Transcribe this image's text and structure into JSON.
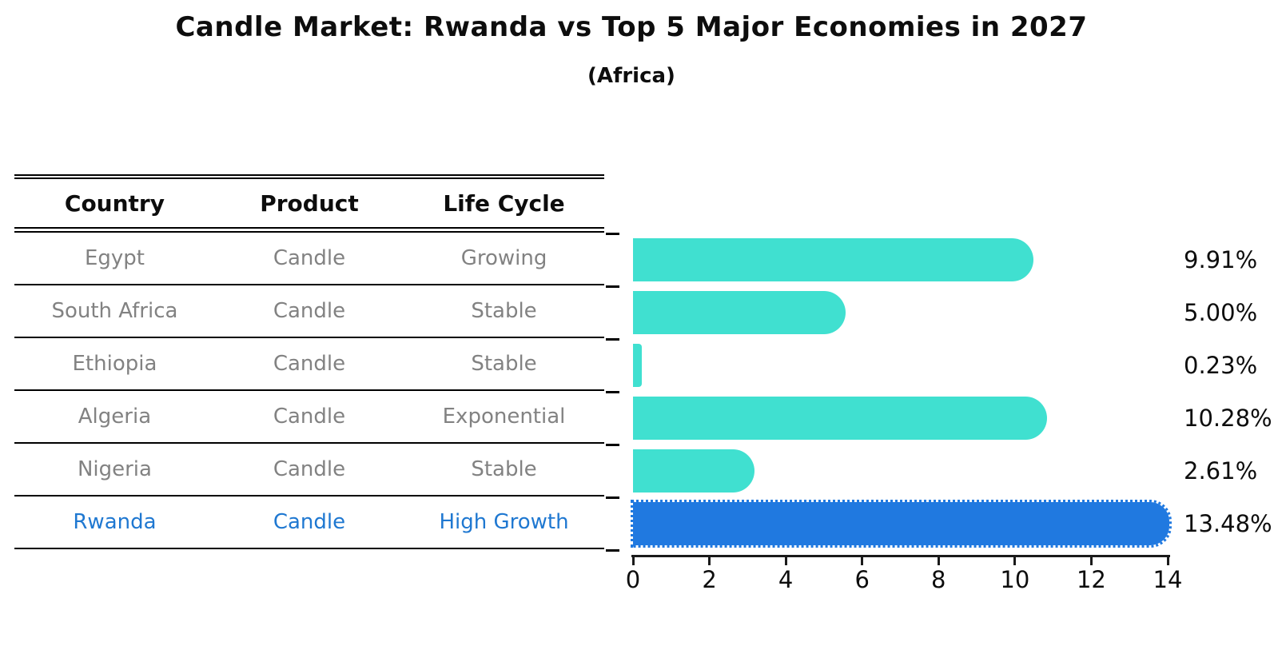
{
  "title": "Candle Market: Rwanda vs Top 5 Major Economies in 2027",
  "subtitle": "(Africa)",
  "table": {
    "headers": [
      "Country",
      "Product",
      "Life Cycle"
    ]
  },
  "chart_data": {
    "type": "bar",
    "orientation": "horizontal",
    "title": "Candle Market: Rwanda vs Top 5 Major Economies in 2027",
    "subtitle": "(Africa)",
    "categories": [
      "Egypt",
      "South Africa",
      "Ethiopia",
      "Algeria",
      "Nigeria",
      "Rwanda"
    ],
    "values": [
      9.91,
      5.0,
      0.23,
      10.28,
      2.61,
      13.48
    ],
    "value_labels": [
      "9.91%",
      "5.00%",
      "0.23%",
      "10.28%",
      "2.61%",
      "13.48%"
    ],
    "rows": [
      {
        "country": "Egypt",
        "product": "Candle",
        "life_cycle": "Growing",
        "value": 9.91,
        "label": "9.91%",
        "highlight": false
      },
      {
        "country": "South Africa",
        "product": "Candle",
        "life_cycle": "Stable",
        "value": 5.0,
        "label": "5.00%",
        "highlight": false
      },
      {
        "country": "Ethiopia",
        "product": "Candle",
        "life_cycle": "Stable",
        "value": 0.23,
        "label": "0.23%",
        "highlight": false
      },
      {
        "country": "Algeria",
        "product": "Candle",
        "life_cycle": "Exponential",
        "value": 10.28,
        "label": "10.28%",
        "highlight": false
      },
      {
        "country": "Nigeria",
        "product": "Candle",
        "life_cycle": "Stable",
        "value": 2.61,
        "label": "2.61%",
        "highlight": false
      },
      {
        "country": "Rwanda",
        "product": "Candle",
        "life_cycle": "High Growth",
        "value": 13.48,
        "label": "13.48%",
        "highlight": true
      }
    ],
    "xlim": [
      0,
      14
    ],
    "x_ticks": [
      "0",
      "2",
      "4",
      "6",
      "8",
      "10",
      "12",
      "14"
    ],
    "grid": "off",
    "legend": "none",
    "bar_color": "#40E0D0",
    "highlight_bar_color": "#2079E0",
    "highlight_text_color": "#1F78D1",
    "row_text_color": "#828282"
  }
}
